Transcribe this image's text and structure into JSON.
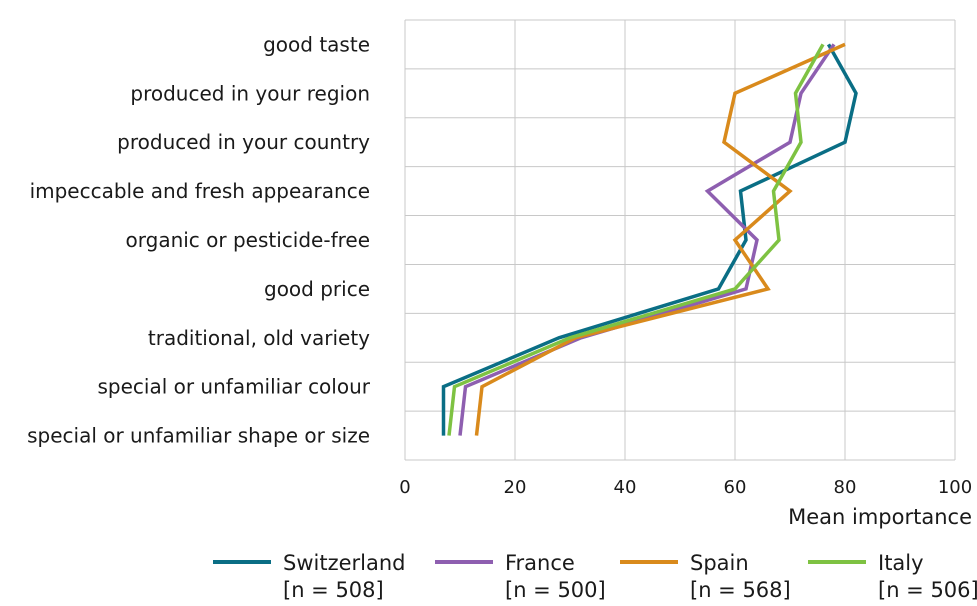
{
  "chart_data": {
    "type": "line",
    "orientation": "horizontal-values",
    "title": "",
    "xlabel": "Mean importance",
    "ylabel": "",
    "xlim": [
      0,
      100
    ],
    "xticks": [
      0,
      20,
      40,
      60,
      80,
      100
    ],
    "grid": true,
    "legend_position": "bottom",
    "categories": [
      "good taste",
      "produced in your region",
      "produced in your country",
      "impeccable and fresh appearance",
      "organic or pesticide-free",
      "good price ",
      "traditional, old variety",
      "special or unfamiliar colour",
      "special or unfamiliar shape or size"
    ],
    "series": [
      {
        "name": "Switzerland",
        "n_label": "[n = 508]",
        "color": "#0a6e85",
        "values": [
          77,
          82,
          80,
          61,
          62,
          57,
          28,
          7,
          7
        ]
      },
      {
        "name": "France",
        "n_label": "[n = 500]",
        "color": "#8e5fb0",
        "values": [
          78,
          72,
          70,
          55,
          64,
          62,
          32,
          11,
          10
        ]
      },
      {
        "name": "Spain",
        "n_label": "[n = 568]",
        "color": "#d98a1c",
        "values": [
          80,
          60,
          58,
          70,
          60,
          66,
          31,
          14,
          13
        ]
      },
      {
        "name": "Italy",
        "n_label": "[n = 506]",
        "color": "#7ec242",
        "values": [
          76,
          71,
          72,
          67,
          68,
          60,
          30,
          9,
          8
        ]
      }
    ]
  }
}
